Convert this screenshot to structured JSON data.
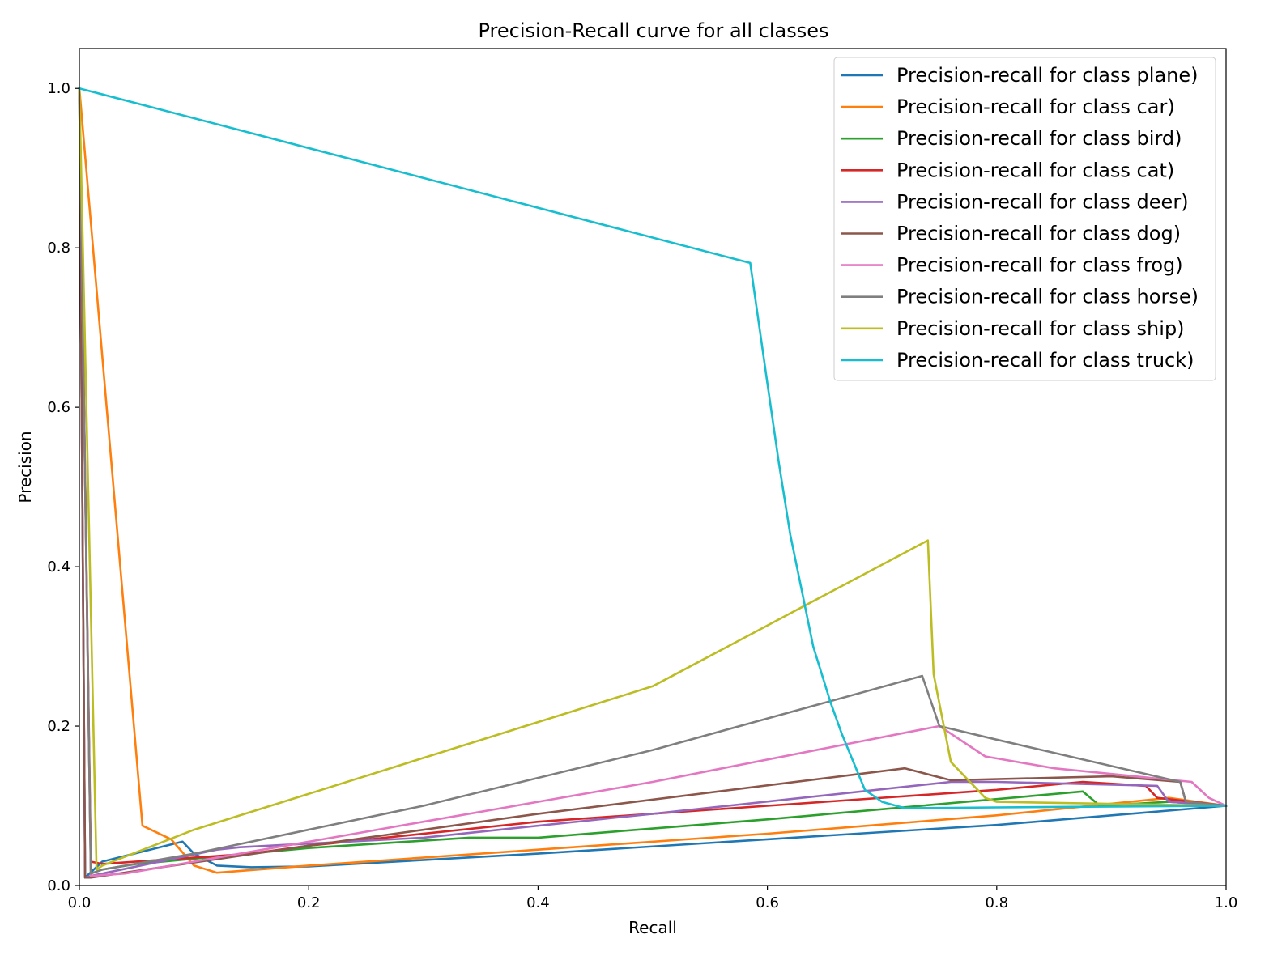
{
  "chart_data": {
    "type": "line",
    "title": "Precision-Recall curve for all classes",
    "xlabel": "Recall",
    "ylabel": "Precision",
    "xlim": [
      0,
      1
    ],
    "ylim": [
      0,
      1.05
    ],
    "xticks": [
      "0.0",
      "0.2",
      "0.4",
      "0.6",
      "0.8",
      "1.0"
    ],
    "yticks": [
      "0.0",
      "0.2",
      "0.4",
      "0.6",
      "0.8",
      "1.0"
    ],
    "grid": false,
    "legend_position": "top-right",
    "series": [
      {
        "name": "Precision-recall for class plane)",
        "color": "#1f77b4",
        "x": [
          0.0,
          0.005,
          0.02,
          0.09,
          0.1,
          0.12,
          0.15,
          0.2,
          0.4,
          0.6,
          0.8,
          1.0
        ],
        "y": [
          1.0,
          0.01,
          0.03,
          0.055,
          0.04,
          0.025,
          0.023,
          0.024,
          0.04,
          0.058,
          0.076,
          0.1
        ]
      },
      {
        "name": "Precision-recall for class car)",
        "color": "#ff7f0e",
        "x": [
          0.0,
          0.055,
          0.08,
          0.1,
          0.12,
          0.2,
          0.4,
          0.6,
          0.8,
          0.95,
          1.0
        ],
        "y": [
          1.0,
          0.075,
          0.058,
          0.025,
          0.016,
          0.025,
          0.045,
          0.065,
          0.088,
          0.11,
          0.1
        ]
      },
      {
        "name": "Precision-recall for class bird)",
        "color": "#2ca02c",
        "x": [
          0.0,
          0.01,
          0.02,
          0.05,
          0.2,
          0.34,
          0.4,
          0.6,
          0.875,
          0.89,
          0.95,
          1.0
        ],
        "y": [
          1.0,
          0.015,
          0.02,
          0.027,
          0.047,
          0.06,
          0.06,
          0.083,
          0.118,
          0.1,
          0.105,
          0.1
        ]
      },
      {
        "name": "Precision-recall for class cat)",
        "color": "#d62728",
        "x": [
          0.0,
          0.01,
          0.02,
          0.15,
          0.2,
          0.4,
          0.6,
          0.8,
          0.875,
          0.93,
          0.94,
          0.97,
          1.0
        ],
        "y": [
          1.0,
          0.03,
          0.027,
          0.04,
          0.05,
          0.08,
          0.1,
          0.12,
          0.13,
          0.125,
          0.11,
          0.105,
          0.1
        ]
      },
      {
        "name": "Precision-recall for class deer)",
        "color": "#9467bd",
        "x": [
          0.0,
          0.005,
          0.01,
          0.12,
          0.14,
          0.3,
          0.5,
          0.76,
          0.8,
          0.94,
          0.95,
          1.0
        ],
        "y": [
          1.0,
          0.01,
          0.012,
          0.045,
          0.048,
          0.06,
          0.09,
          0.13,
          0.13,
          0.125,
          0.105,
          0.1
        ]
      },
      {
        "name": "Precision-recall for class dog)",
        "color": "#8c564b",
        "x": [
          0.0,
          0.005,
          0.01,
          0.2,
          0.4,
          0.72,
          0.76,
          0.9,
          0.96,
          0.965,
          1.0
        ],
        "y": [
          1.0,
          0.01,
          0.01,
          0.05,
          0.09,
          0.147,
          0.132,
          0.137,
          0.13,
          0.105,
          0.1
        ]
      },
      {
        "name": "Precision-recall for class frog)",
        "color": "#e377c2",
        "x": [
          0.0,
          0.01,
          0.04,
          0.1,
          0.3,
          0.5,
          0.75,
          0.79,
          0.85,
          0.97,
          0.985,
          1.0
        ],
        "y": [
          1.0,
          0.012,
          0.015,
          0.03,
          0.08,
          0.13,
          0.2,
          0.162,
          0.147,
          0.13,
          0.11,
          0.1
        ]
      },
      {
        "name": "Precision-recall for class horse)",
        "color": "#7f7f7f",
        "x": [
          0.0,
          0.01,
          0.02,
          0.1,
          0.3,
          0.5,
          0.735,
          0.75,
          0.8,
          0.96,
          0.965,
          1.0
        ],
        "y": [
          1.0,
          0.015,
          0.02,
          0.04,
          0.1,
          0.17,
          0.263,
          0.2,
          0.183,
          0.13,
          0.105,
          0.1
        ]
      },
      {
        "name": "Precision-recall for class ship)",
        "color": "#bcbd22",
        "x": [
          0.0,
          0.015,
          0.02,
          0.1,
          0.3,
          0.5,
          0.74,
          0.745,
          0.76,
          0.79,
          0.8,
          1.0
        ],
        "y": [
          1.0,
          0.02,
          0.025,
          0.07,
          0.16,
          0.25,
          0.433,
          0.265,
          0.155,
          0.11,
          0.105,
          0.1
        ]
      },
      {
        "name": "Precision-recall for class truck)",
        "color": "#17becf",
        "x": [
          0.0,
          0.585,
          0.6,
          0.61,
          0.62,
          0.63,
          0.64,
          0.655,
          0.665,
          0.675,
          0.685,
          0.7,
          0.72,
          0.8,
          1.0
        ],
        "y": [
          1.0,
          0.781,
          0.63,
          0.53,
          0.44,
          0.37,
          0.3,
          0.23,
          0.19,
          0.155,
          0.12,
          0.105,
          0.097,
          0.098,
          0.1
        ]
      }
    ]
  }
}
